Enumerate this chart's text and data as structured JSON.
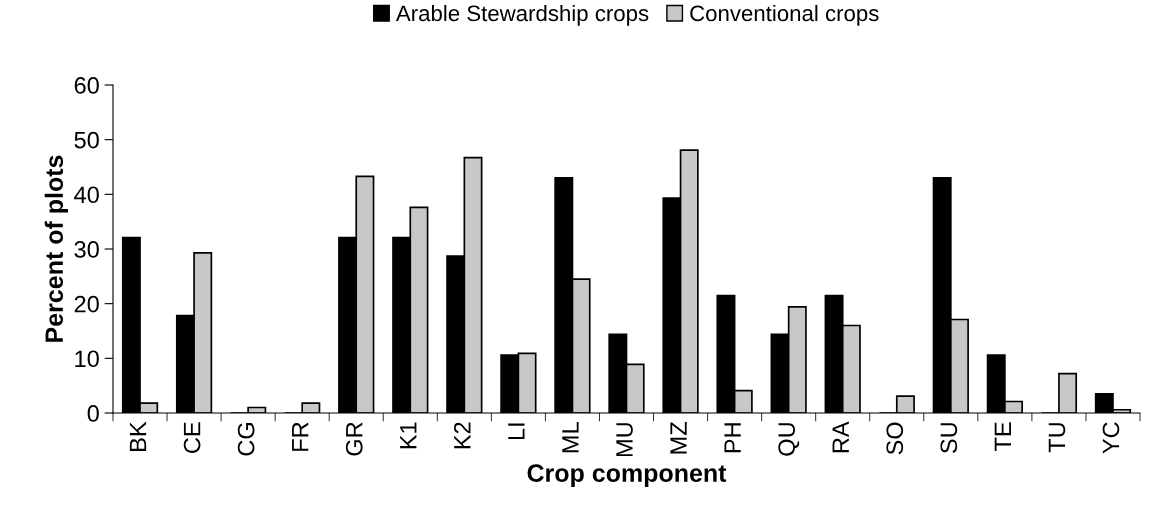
{
  "chart_data": {
    "type": "bar",
    "xlabel": "Crop component",
    "ylabel": "Percent of plots",
    "categories": [
      "BK",
      "CE",
      "CG",
      "FR",
      "GR",
      "K1",
      "K2",
      "LI",
      "ML",
      "MU",
      "MZ",
      "PH",
      "QU",
      "RA",
      "SO",
      "SU",
      "TE",
      "TU",
      "YC"
    ],
    "series": [
      {
        "name": "Arable Stewardship crops",
        "color": "#000000",
        "values": [
          32.1,
          17.8,
          0,
          0,
          32.1,
          32.1,
          28.7,
          10.6,
          43.0,
          14.4,
          39.3,
          21.5,
          14.4,
          21.5,
          0,
          43.0,
          10.6,
          0,
          3.5
        ]
      },
      {
        "name": "Conventional crops",
        "color": "#c8c8c8",
        "values": [
          1.8,
          29.3,
          1.0,
          1.8,
          43.3,
          37.6,
          46.7,
          10.9,
          24.5,
          8.9,
          48.1,
          4.1,
          19.4,
          16.0,
          3.1,
          17.1,
          2.1,
          7.2,
          0.6
        ]
      }
    ],
    "ylim": [
      0,
      60
    ],
    "yticks": [
      0,
      10,
      20,
      30,
      40,
      50,
      60
    ],
    "grid": false,
    "legend": "top"
  }
}
